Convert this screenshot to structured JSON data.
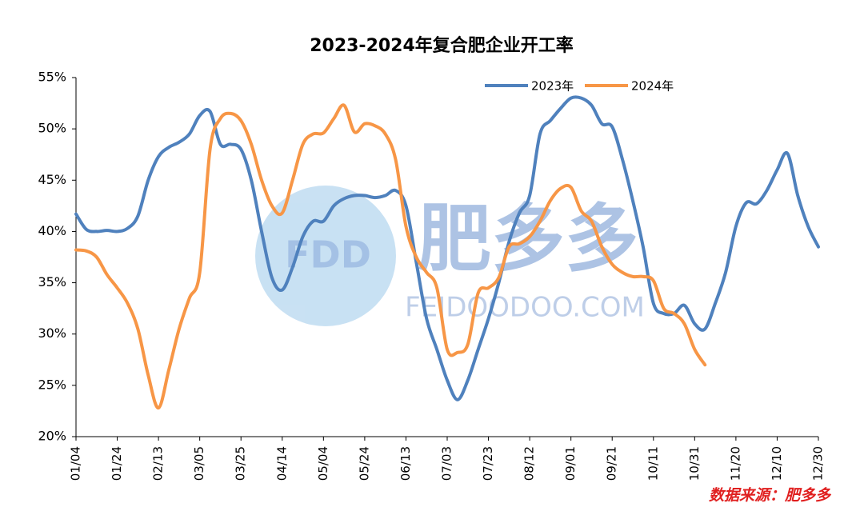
{
  "chart_data": {
    "type": "line",
    "title": "2023-2024年复合肥企业开工率",
    "categories": [
      "01/04",
      null,
      null,
      null,
      "01/24",
      null,
      null,
      null,
      "02/13",
      null,
      null,
      null,
      "03/05",
      null,
      null,
      null,
      "03/25",
      null,
      null,
      null,
      "04/14",
      null,
      null,
      null,
      "05/04",
      null,
      null,
      null,
      "05/24",
      null,
      null,
      null,
      "06/13",
      null,
      null,
      null,
      "07/03",
      null,
      null,
      null,
      "07/23",
      null,
      null,
      null,
      "08/12",
      null,
      null,
      null,
      "09/01",
      null,
      null,
      null,
      "09/21",
      null,
      null,
      null,
      "10/11",
      null,
      null,
      null,
      "10/31",
      null,
      null,
      null,
      "11/20",
      null,
      null,
      null,
      "12/10",
      null,
      null,
      null,
      "12/30"
    ],
    "series": [
      {
        "name": "2023年",
        "color": "#4f81bd",
        "values": [
          41.7,
          40.2,
          40.0,
          40.1,
          40.0,
          40.3,
          41.5,
          45,
          47.3,
          48.2,
          48.7,
          49.5,
          51.3,
          51.7,
          48.5,
          48.5,
          48.0,
          45,
          40,
          35.5,
          34.3,
          36.5,
          39.5,
          41,
          41.0,
          42.5,
          43.2,
          43.5,
          43.5,
          43.3,
          43.5,
          44.0,
          42.5,
          37,
          31.5,
          28.5,
          25.5,
          23.6,
          25.5,
          28.5,
          31.5,
          35,
          39,
          41.8,
          43.5,
          49.5,
          50.8,
          52,
          53,
          53,
          52.3,
          50.5,
          50.2,
          47,
          43,
          38.5,
          33,
          32,
          32,
          32.8,
          31,
          30.5,
          33,
          36,
          40.5,
          42.8,
          42.7,
          44,
          46,
          47.6,
          43.5,
          40.5,
          38.5
        ]
      },
      {
        "name": "2024年",
        "color": "#f79646",
        "values": [
          38.2,
          38.1,
          37.5,
          35.8,
          34.5,
          33,
          30.5,
          26,
          22.8,
          26.5,
          30.5,
          33.5,
          36,
          48,
          51,
          51.5,
          50.8,
          48.5,
          45,
          42.5,
          41.8,
          45,
          48.5,
          49.5,
          49.6,
          51,
          52.3,
          49.7,
          50.5,
          50.3,
          49.5,
          47,
          40.5,
          37.5,
          36,
          34.5,
          28.5,
          28.2,
          29,
          34,
          34.5,
          35.5,
          38.5,
          38.8,
          39.5,
          41,
          43,
          44.2,
          44.3,
          42,
          41,
          38.5,
          36.8,
          36,
          35.6,
          35.6,
          35.2,
          32.5,
          32,
          31,
          28.5,
          27.0,
          null,
          null,
          null,
          null,
          null,
          null,
          null,
          null,
          null,
          null,
          null
        ]
      }
    ],
    "ylim": [
      20,
      55
    ],
    "yticks": [
      {
        "value": 20,
        "label": "20%"
      },
      {
        "value": 25,
        "label": "25%"
      },
      {
        "value": 30,
        "label": "30%"
      },
      {
        "value": 35,
        "label": "35%"
      },
      {
        "value": 40,
        "label": "40%"
      },
      {
        "value": 45,
        "label": "45%"
      },
      {
        "value": 50,
        "label": "50%"
      },
      {
        "value": 55,
        "label": "55%"
      }
    ],
    "grid": false,
    "legend": "top-right",
    "source": "数据来源：肥多多",
    "watermark": {
      "logo": "FDD",
      "name": "肥多多",
      "url": "FEIDOODOO.COM"
    }
  }
}
